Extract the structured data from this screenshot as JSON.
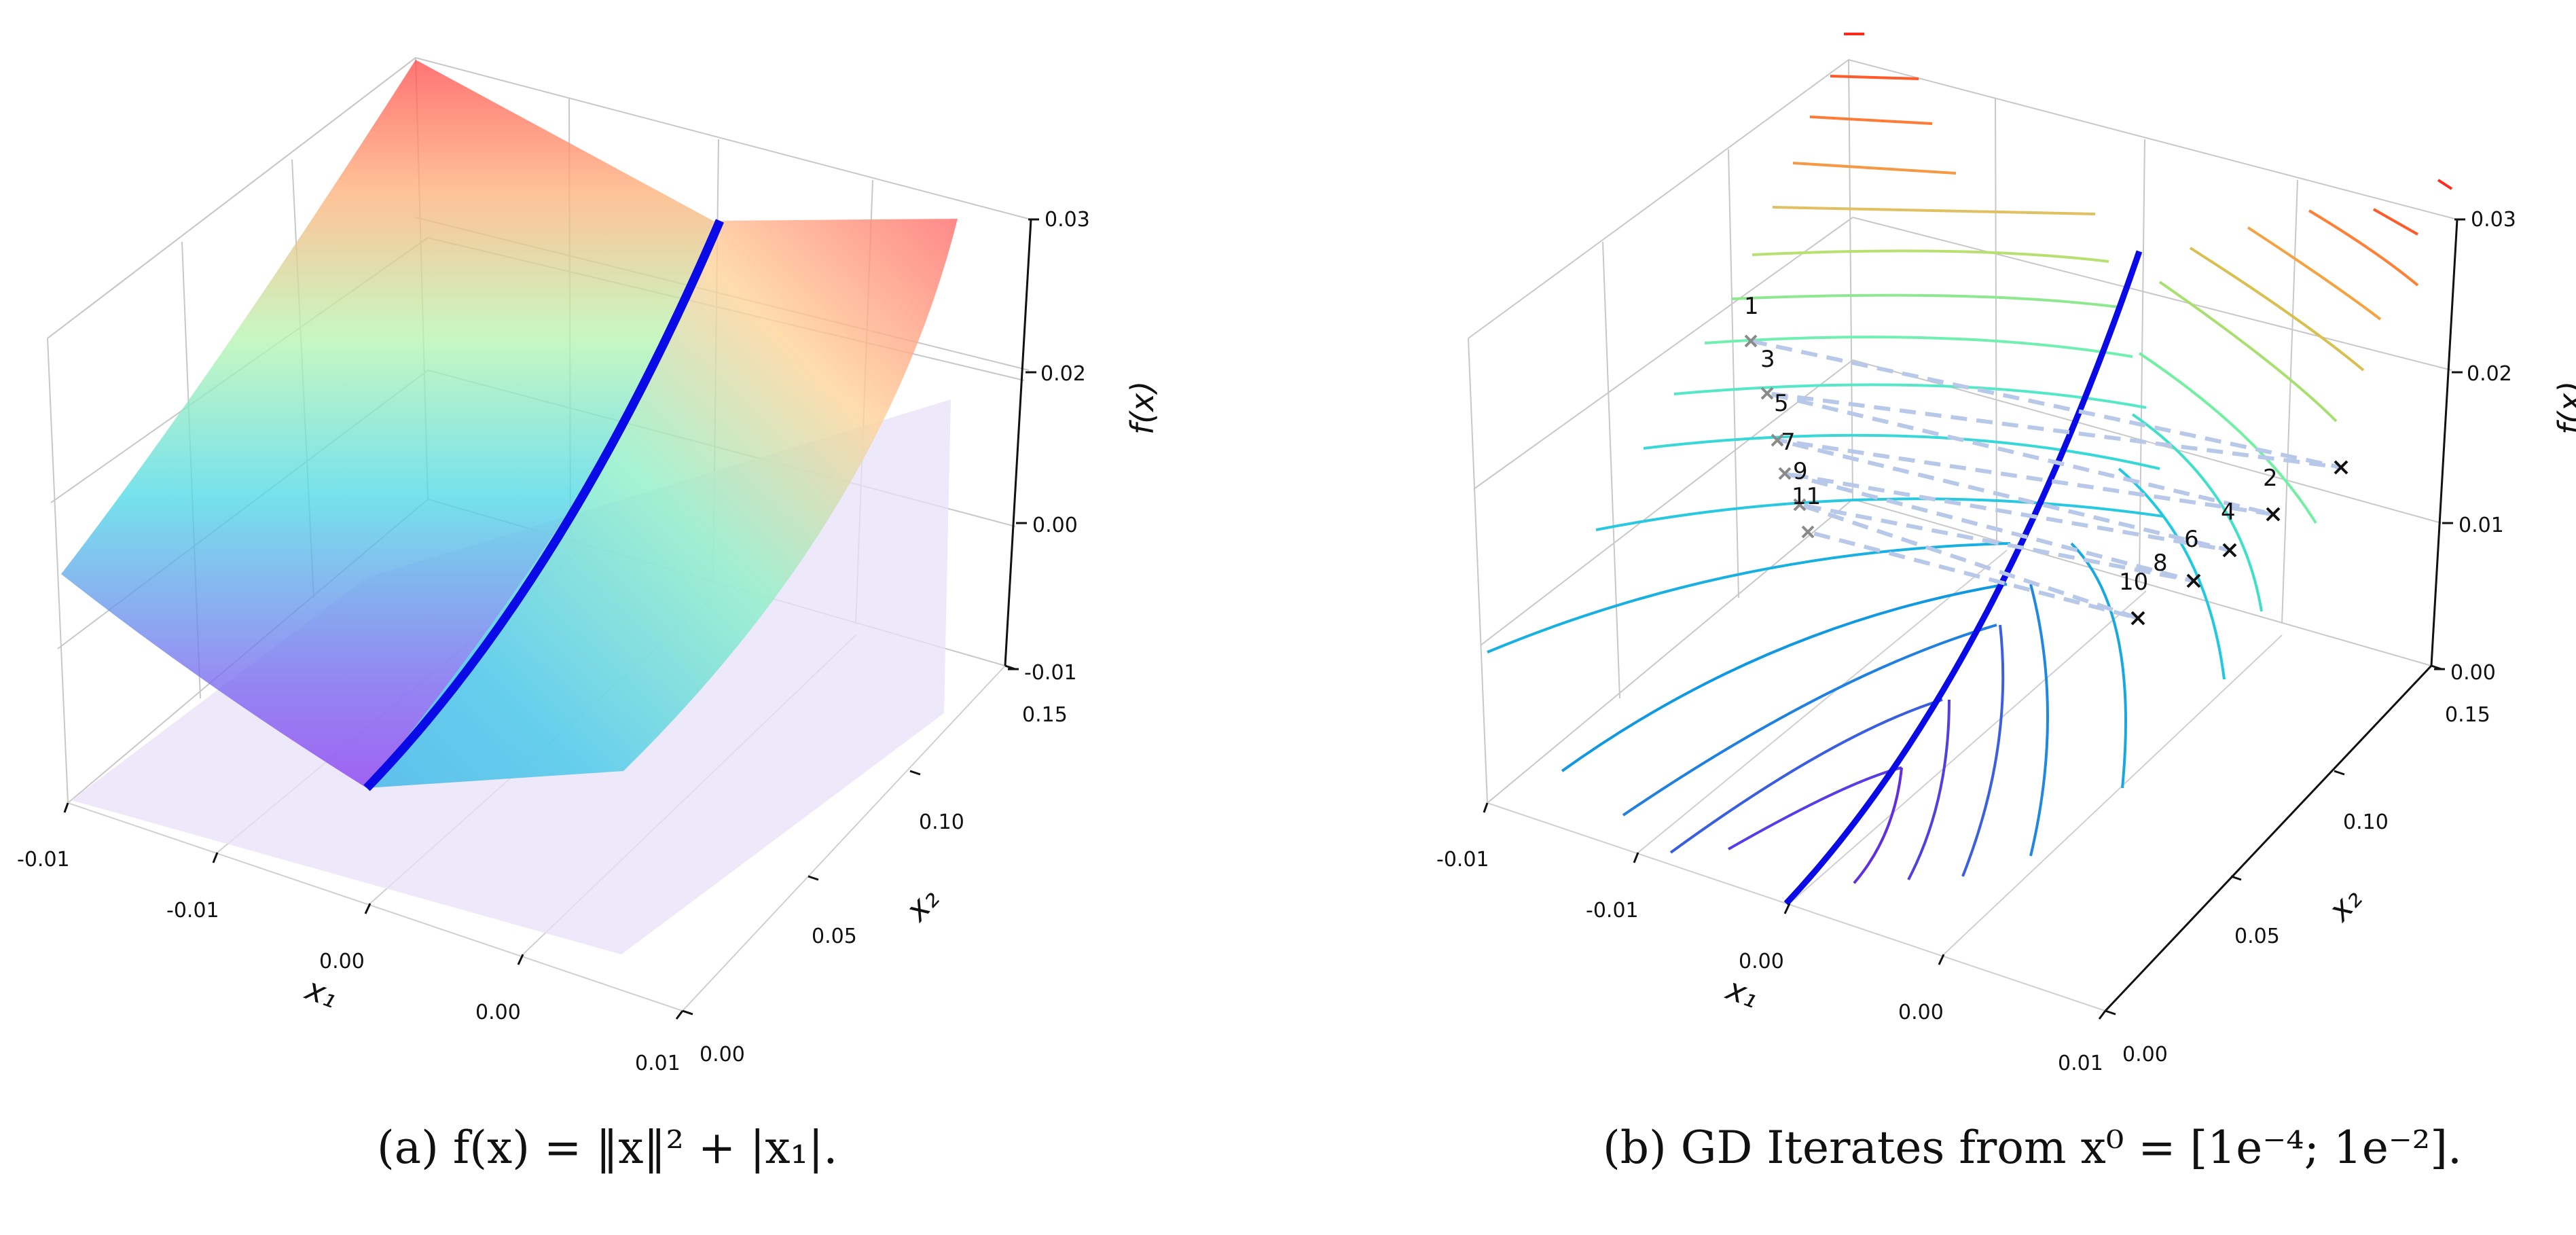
{
  "figure": {
    "caption_a": "(a) f(x) = ‖x‖² + |x₁|.",
    "caption_b": "(b) GD Iterates from x⁰ = [1e⁻⁴; 1e⁻²]."
  },
  "chart_data": [
    {
      "type": "surface3d",
      "panel": "a",
      "caption": "(a) f(x) = ‖x‖² + |x₁|.",
      "xlabel": "x₁",
      "ylabel": "x₂",
      "zlabel": "f(x)",
      "x_tick_labels": [
        "-0.01",
        "-0.01",
        "0.00",
        "0.00",
        "0.01"
      ],
      "y_tick_labels": [
        "0.00",
        "0.05",
        "0.10",
        "0.15"
      ],
      "z_tick_labels": [
        "-0.01",
        "0.00",
        "0.02",
        "0.03"
      ],
      "function": "f(x) = ||x||^2 + |x1|",
      "colormap": "rainbow",
      "features": [
        "translucent surface",
        "projected surface below",
        "nondifferentiable valley at x1 = 0 (blue)"
      ],
      "colors": {
        "valley": "#0a0ae6"
      },
      "grid": true
    },
    {
      "type": "contour3d",
      "panel": "b",
      "caption": "(b) GD Iterates from x⁰ = [1e⁻⁴; 1e⁻²].",
      "xlabel": "x₁",
      "ylabel": "x₂",
      "zlabel": "f(x)",
      "x_tick_labels": [
        "-0.01",
        "-0.01",
        "0.00",
        "0.00",
        "0.01"
      ],
      "y_tick_labels": [
        "0.00",
        "0.05",
        "0.10",
        "0.15"
      ],
      "z_tick_labels": [
        "0.00",
        "0.01",
        "0.02",
        "0.03"
      ],
      "colormap": "rainbow",
      "iterate_labels_left": [
        "1",
        "3",
        "5",
        "7",
        "9",
        "11"
      ],
      "iterate_labels_right": [
        "2",
        "4",
        "6",
        "8",
        "10"
      ],
      "colors": {
        "valley": "#0a0ae6",
        "path": "#b8c8e8"
      },
      "grid": true
    }
  ]
}
